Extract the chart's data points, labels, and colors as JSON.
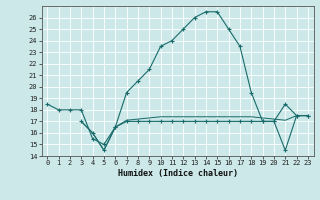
{
  "xlabel": "Humidex (Indice chaleur)",
  "ylabel": "",
  "background_color": "#cce8e8",
  "grid_color": "#ffffff",
  "line_color": "#1a6b6b",
  "xlim": [
    -0.5,
    23.5
  ],
  "ylim": [
    14,
    27
  ],
  "yticks": [
    14,
    15,
    16,
    17,
    18,
    19,
    20,
    21,
    22,
    23,
    24,
    25,
    26
  ],
  "xticks": [
    0,
    1,
    2,
    3,
    4,
    5,
    6,
    7,
    8,
    9,
    10,
    11,
    12,
    13,
    14,
    15,
    16,
    17,
    18,
    19,
    20,
    21,
    22,
    23
  ],
  "main_line_x": [
    0,
    1,
    2,
    3,
    4,
    5,
    6,
    7,
    8,
    9,
    10,
    11,
    12,
    13,
    14,
    15,
    16,
    17,
    18,
    19,
    20,
    21,
    22,
    23
  ],
  "main_line_y": [
    18.5,
    18.0,
    18.0,
    18.0,
    15.5,
    15.0,
    16.5,
    19.5,
    20.5,
    21.5,
    23.5,
    24.0,
    25.0,
    26.0,
    26.5,
    26.5,
    25.0,
    23.5,
    19.5,
    17.0,
    17.0,
    18.5,
    17.5,
    17.5
  ],
  "line2_x": [
    3,
    4,
    5,
    6,
    7,
    8,
    9,
    10,
    11,
    12,
    13,
    14,
    15,
    16,
    17,
    18,
    19,
    20,
    21,
    22,
    23
  ],
  "line2_y": [
    17.0,
    16.0,
    14.5,
    16.5,
    17.0,
    17.0,
    17.0,
    17.0,
    17.0,
    17.0,
    17.0,
    17.0,
    17.0,
    17.0,
    17.0,
    17.0,
    17.0,
    17.0,
    14.5,
    17.5,
    17.5
  ],
  "line3_x": [
    3,
    4,
    5,
    6,
    7,
    8,
    9,
    10,
    11,
    12,
    13,
    14,
    15,
    16,
    17,
    18,
    19,
    20,
    21,
    22,
    23
  ],
  "line3_y": [
    17.0,
    16.0,
    14.5,
    16.5,
    17.1,
    17.2,
    17.3,
    17.4,
    17.4,
    17.4,
    17.4,
    17.4,
    17.4,
    17.4,
    17.4,
    17.4,
    17.3,
    17.2,
    17.1,
    17.5,
    17.5
  ],
  "tick_fontsize": 5.0,
  "xlabel_fontsize": 6.0,
  "marker_size": 3.5,
  "line_width": 0.8
}
